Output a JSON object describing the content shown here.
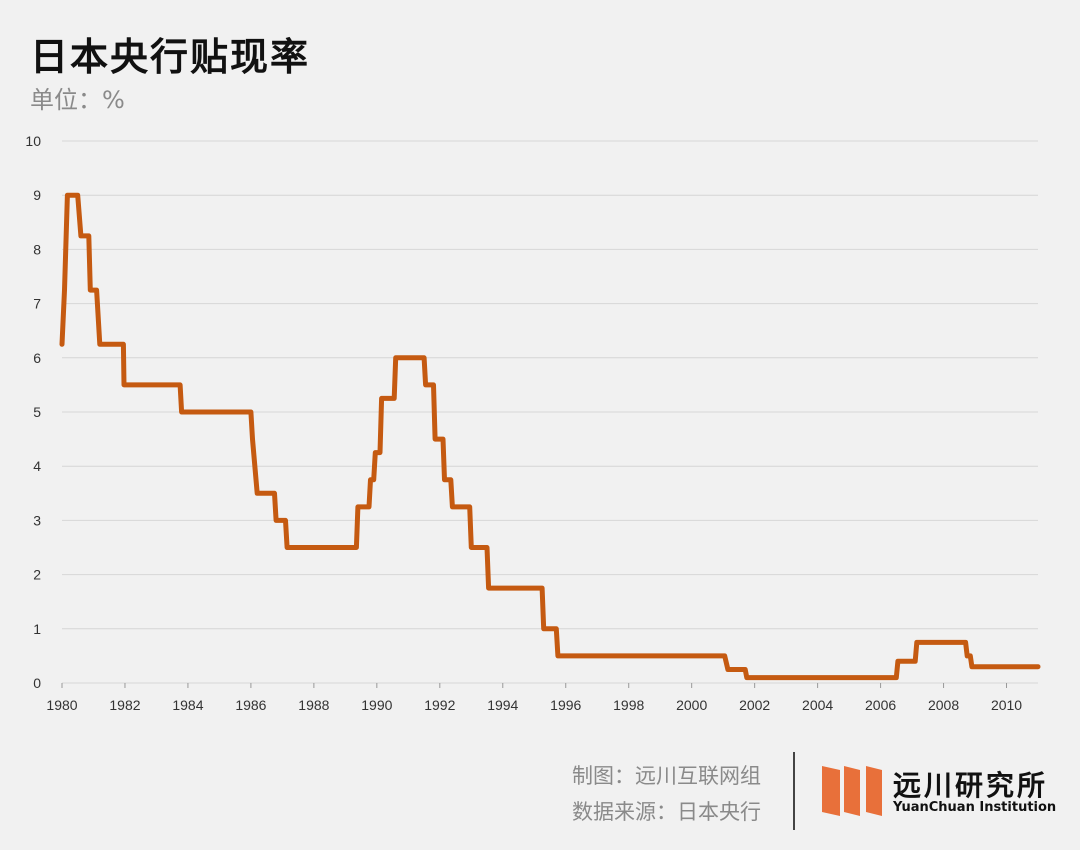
{
  "header": {
    "title": "日本央行贴现率",
    "unit": "单位：%"
  },
  "footer": {
    "credit": "制图：远川互联网组",
    "source": "数据来源：日本央行",
    "logo_cn": "远川研究所",
    "logo_en": "YuanChuan Institution"
  },
  "colors": {
    "line": "#c55a11",
    "logo": "#e8703a",
    "grid": "#d6d6d6"
  },
  "chart_data": {
    "type": "line",
    "xlim": [
      1980,
      2011
    ],
    "ylim": [
      0,
      10
    ],
    "x_ticks": [
      1980,
      1982,
      1984,
      1986,
      1988,
      1990,
      1992,
      1994,
      1996,
      1998,
      2000,
      2002,
      2004,
      2006,
      2008,
      2010
    ],
    "y_ticks": [
      0,
      1,
      2,
      3,
      4,
      5,
      6,
      7,
      8,
      9,
      10
    ],
    "grid": true,
    "legend": "none",
    "series": [
      {
        "points": [
          [
            1980.0,
            6.25
          ],
          [
            1980.08,
            7.25
          ],
          [
            1980.17,
            9.0
          ],
          [
            1980.5,
            9.0
          ],
          [
            1980.6,
            8.25
          ],
          [
            1980.85,
            8.25
          ],
          [
            1980.9,
            7.25
          ],
          [
            1981.1,
            7.25
          ],
          [
            1981.2,
            6.25
          ],
          [
            1981.95,
            6.25
          ],
          [
            1981.97,
            5.5
          ],
          [
            1983.75,
            5.5
          ],
          [
            1983.8,
            5.0
          ],
          [
            1986.0,
            5.0
          ],
          [
            1986.05,
            4.5
          ],
          [
            1986.2,
            3.5
          ],
          [
            1986.75,
            3.5
          ],
          [
            1986.8,
            3.0
          ],
          [
            1987.1,
            3.0
          ],
          [
            1987.15,
            2.5
          ],
          [
            1989.35,
            2.5
          ],
          [
            1989.4,
            3.25
          ],
          [
            1989.75,
            3.25
          ],
          [
            1989.8,
            3.75
          ],
          [
            1989.9,
            3.75
          ],
          [
            1989.95,
            4.25
          ],
          [
            1990.1,
            4.25
          ],
          [
            1990.15,
            5.25
          ],
          [
            1990.55,
            5.25
          ],
          [
            1990.6,
            6.0
          ],
          [
            1991.5,
            6.0
          ],
          [
            1991.55,
            5.5
          ],
          [
            1991.8,
            5.5
          ],
          [
            1991.85,
            4.5
          ],
          [
            1992.1,
            4.5
          ],
          [
            1992.15,
            3.75
          ],
          [
            1992.35,
            3.75
          ],
          [
            1992.4,
            3.25
          ],
          [
            1992.95,
            3.25
          ],
          [
            1993.0,
            2.5
          ],
          [
            1993.5,
            2.5
          ],
          [
            1993.55,
            1.75
          ],
          [
            1995.25,
            1.75
          ],
          [
            1995.3,
            1.0
          ],
          [
            1995.7,
            1.0
          ],
          [
            1995.75,
            0.5
          ],
          [
            2001.05,
            0.5
          ],
          [
            2001.15,
            0.25
          ],
          [
            2001.7,
            0.25
          ],
          [
            2001.75,
            0.1
          ],
          [
            2006.5,
            0.1
          ],
          [
            2006.55,
            0.4
          ],
          [
            2007.1,
            0.4
          ],
          [
            2007.15,
            0.75
          ],
          [
            2008.7,
            0.75
          ],
          [
            2008.75,
            0.5
          ],
          [
            2008.85,
            0.5
          ],
          [
            2008.9,
            0.3
          ],
          [
            2011.0,
            0.3
          ]
        ]
      }
    ]
  }
}
